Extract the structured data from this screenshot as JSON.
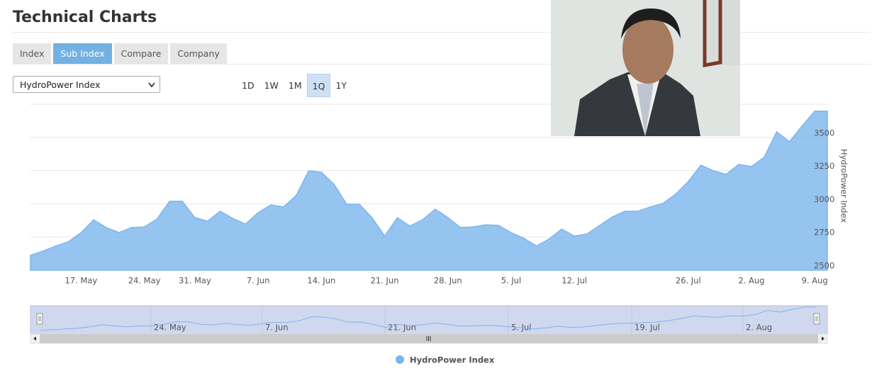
{
  "header": {
    "title": "Technical Charts"
  },
  "tabs": [
    "Index",
    "Sub Index",
    "Compare",
    "Company"
  ],
  "active_tab": 1,
  "index_select": "HydroPower Index",
  "ranges": [
    "1D",
    "1W",
    "1M",
    "1Q",
    "1Y"
  ],
  "active_range": 3,
  "chart_data": {
    "type": "area",
    "categories": [
      null,
      null,
      null,
      null,
      "17. May",
      null,
      null,
      null,
      null,
      "24. May",
      null,
      null,
      null,
      "31. May",
      null,
      null,
      null,
      null,
      "7. Jun",
      null,
      null,
      null,
      null,
      "14. Jun",
      null,
      null,
      null,
      null,
      "21. Jun",
      null,
      null,
      null,
      null,
      "28. Jun",
      null,
      null,
      null,
      null,
      "5. Jul",
      null,
      null,
      null,
      null,
      "12. Jul",
      null,
      null,
      null,
      null,
      null,
      null,
      null,
      null,
      "26. Jul",
      null,
      null,
      null,
      null,
      "2. Aug",
      null,
      null,
      null,
      null,
      "9. Aug",
      null
    ],
    "series": [
      {
        "name": "HydroPower Index",
        "color": "#7cb5ec",
        "values": [
          2612,
          2644,
          2682,
          2714,
          2783,
          2880,
          2821,
          2783,
          2821,
          2826,
          2885,
          3019,
          3019,
          2896,
          2869,
          2944,
          2890,
          2848,
          2933,
          2992,
          2976,
          3062,
          3249,
          3238,
          3147,
          2997,
          2997,
          2896,
          2757,
          2896,
          2832,
          2880,
          2960,
          2896,
          2821,
          2826,
          2842,
          2837,
          2783,
          2741,
          2682,
          2735,
          2810,
          2757,
          2773,
          2837,
          2901,
          2944,
          2944,
          2976,
          3003,
          3072,
          3168,
          3291,
          3249,
          3222,
          3297,
          3281,
          3350,
          3543,
          3468,
          3586,
          3698,
          3698
        ]
      }
    ],
    "ylim": [
      2500,
      3750
    ],
    "yticks": [
      2500,
      2750,
      3000,
      3250,
      3500
    ],
    "y_axis_label": "HydroPower Index",
    "grid": true,
    "legend": "bottom"
  },
  "navigator": {
    "labels": [
      "24. May",
      "7. Jun",
      "21. Jun",
      "5. Jul",
      "19. Jul",
      "2. Aug"
    ]
  }
}
